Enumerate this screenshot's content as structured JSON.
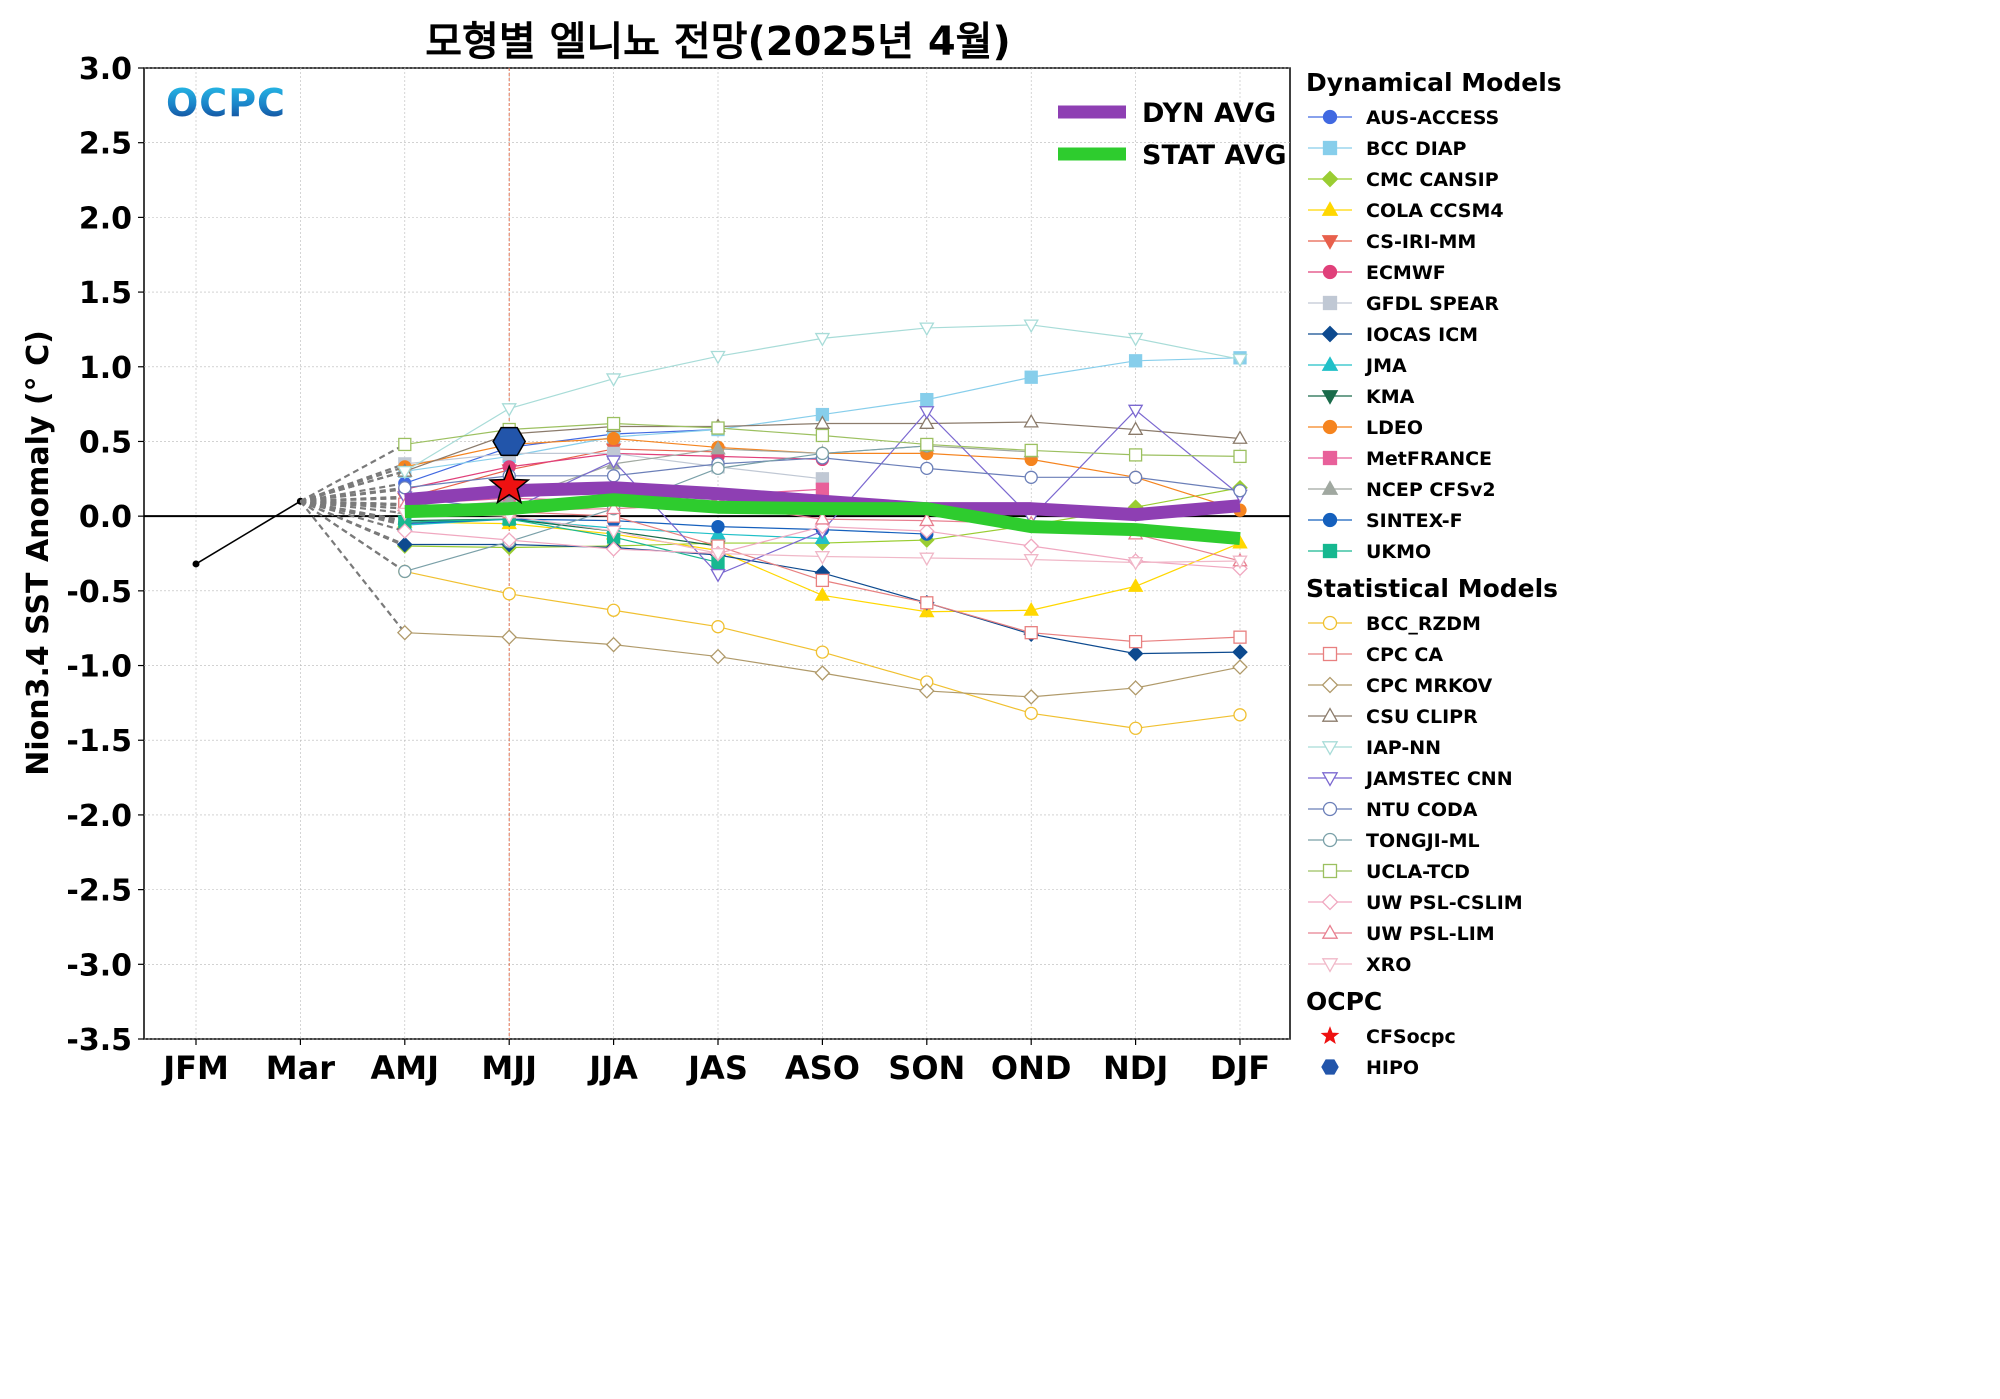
{
  "chart_data": {
    "type": "line",
    "title": "모형별 엘니뇨 전망(2025년 4월)",
    "logo_text": "OCPC",
    "ylabel": "Nion3.4 SST Anomaly (° C)",
    "ylim": [
      -3.5,
      3.0
    ],
    "yticks": [
      "3.0",
      "2.5",
      "2.0",
      "1.5",
      "1.0",
      "0.5",
      "0.0",
      "-0.5",
      "-1.0",
      "-1.5",
      "-2.0",
      "-2.5",
      "-3.0",
      "-3.5"
    ],
    "ytick_values": [
      3.0,
      2.5,
      2.0,
      1.5,
      1.0,
      0.5,
      0.0,
      -0.5,
      -1.0,
      -1.5,
      -2.0,
      -2.5,
      -3.0,
      -3.5
    ],
    "categories": [
      "JFM",
      "Mar",
      "AMJ",
      "MJJ",
      "JJA",
      "JAS",
      "ASO",
      "SON",
      "OND",
      "NDJ",
      "DJF"
    ],
    "grid": true,
    "observed": {
      "x": [
        "JFM",
        "Mar"
      ],
      "values": [
        -0.32,
        0.1
      ],
      "color": "#000000"
    },
    "current_month_marker": "MJJ",
    "avg_legend_placement": "top-right",
    "avg_series": [
      {
        "name": "DYN AVG",
        "color": "#8e3fb3",
        "values": [
          null,
          null,
          0.11,
          0.17,
          0.19,
          0.15,
          0.1,
          0.05,
          0.05,
          0.01,
          0.07
        ]
      },
      {
        "name": "STAT AVG",
        "color": "#2ecc2e",
        "values": [
          null,
          null,
          0.03,
          0.05,
          0.11,
          0.06,
          0.05,
          0.05,
          -0.07,
          -0.09,
          -0.15
        ]
      }
    ],
    "legend_groups": [
      {
        "title": "Dynamical Models",
        "series": [
          {
            "name": "AUS-ACCESS",
            "color": "#4169e1",
            "marker": "circle",
            "fill": true,
            "values": [
              null,
              null,
              0.22,
              0.46,
              0.55,
              0.58,
              null,
              null,
              null,
              null,
              null
            ]
          },
          {
            "name": "BCC DIAP",
            "color": "#87ceeb",
            "marker": "square",
            "fill": true,
            "values": [
              null,
              null,
              0.3,
              0.4,
              0.53,
              0.58,
              0.68,
              0.78,
              0.93,
              1.04,
              1.06
            ]
          },
          {
            "name": "CMC CANSIP",
            "color": "#9acd32",
            "marker": "diamond",
            "fill": true,
            "values": [
              null,
              null,
              -0.2,
              -0.21,
              -0.2,
              -0.18,
              -0.18,
              -0.16,
              -0.06,
              0.06,
              0.19
            ]
          },
          {
            "name": "COLA CCSM4",
            "color": "#ffd700",
            "marker": "triangle-up",
            "fill": true,
            "values": [
              null,
              null,
              -0.04,
              -0.05,
              -0.12,
              -0.23,
              -0.53,
              -0.64,
              -0.63,
              -0.47,
              -0.18
            ]
          },
          {
            "name": "CS-IRI-MM",
            "color": "#e8604c",
            "marker": "triangle-down",
            "fill": true,
            "values": [
              null,
              null,
              0.12,
              0.31,
              0.45,
              0.43,
              null,
              null,
              null,
              null,
              null
            ]
          },
          {
            "name": "ECMWF",
            "color": "#e0407a",
            "marker": "circle",
            "fill": true,
            "values": [
              null,
              null,
              0.18,
              0.33,
              0.42,
              0.4,
              0.38,
              null,
              null,
              null,
              null
            ]
          },
          {
            "name": "GFDL SPEAR",
            "color": "#c0c8d4",
            "marker": "square",
            "fill": true,
            "values": [
              null,
              null,
              0.35,
              0.42,
              0.42,
              0.33,
              0.25,
              null,
              null,
              null,
              null
            ]
          },
          {
            "name": "IOCAS ICM",
            "color": "#0d4a8f",
            "marker": "diamond",
            "fill": true,
            "values": [
              null,
              null,
              -0.19,
              -0.19,
              -0.21,
              -0.26,
              -0.38,
              -0.58,
              -0.79,
              -0.92,
              -0.91
            ]
          },
          {
            "name": "JMA",
            "color": "#20c0c8",
            "marker": "triangle-up",
            "fill": true,
            "values": [
              null,
              null,
              -0.06,
              -0.02,
              -0.08,
              -0.12,
              -0.15,
              null,
              null,
              null,
              null
            ]
          },
          {
            "name": "KMA",
            "color": "#1a6b4a",
            "marker": "triangle-down",
            "fill": true,
            "values": [
              null,
              null,
              -0.03,
              -0.02,
              -0.1,
              -0.2,
              null,
              null,
              null,
              null,
              null
            ]
          },
          {
            "name": "LDEO",
            "color": "#f5841f",
            "marker": "circle",
            "fill": true,
            "values": [
              null,
              null,
              0.33,
              0.48,
              0.52,
              0.46,
              0.42,
              0.42,
              0.38,
              0.26,
              0.04
            ]
          },
          {
            "name": "MetFRANCE",
            "color": "#e8609a",
            "marker": "square",
            "fill": true,
            "values": [
              null,
              null,
              0.08,
              0.12,
              0.1,
              0.14,
              0.18,
              null,
              null,
              null,
              null
            ]
          },
          {
            "name": "NCEP CFSv2",
            "color": "#a0a8a0",
            "marker": "triangle-up",
            "fill": true,
            "values": [
              null,
              null,
              0.05,
              0.1,
              0.35,
              0.45,
              0.42,
              0.47,
              0.43,
              null,
              null
            ]
          },
          {
            "name": "SINTEX-F",
            "color": "#1560bd",
            "marker": "circle",
            "fill": true,
            "values": [
              null,
              null,
              -0.05,
              -0.02,
              -0.03,
              -0.07,
              -0.09,
              -0.12,
              null,
              null,
              null
            ]
          },
          {
            "name": "UKMO",
            "color": "#17b890",
            "marker": "square",
            "fill": true,
            "values": [
              null,
              null,
              -0.04,
              -0.02,
              -0.14,
              -0.31,
              null,
              null,
              null,
              null,
              null
            ]
          }
        ]
      },
      {
        "title": "Statistical Models",
        "series": [
          {
            "name": "BCC_RZDM",
            "color": "#f0c030",
            "marker": "circle",
            "fill": false,
            "values": [
              null,
              null,
              -0.37,
              -0.52,
              -0.63,
              -0.74,
              -0.91,
              -1.11,
              -1.32,
              -1.42,
              -1.33
            ]
          },
          {
            "name": "CPC CA",
            "color": "#e88080",
            "marker": "square",
            "fill": false,
            "values": [
              null,
              null,
              0.08,
              0.03,
              0.0,
              -0.2,
              -0.43,
              -0.58,
              -0.78,
              -0.84,
              -0.81
            ]
          },
          {
            "name": "CPC MRKOV",
            "color": "#b09a6a",
            "marker": "diamond",
            "fill": false,
            "values": [
              null,
              null,
              -0.78,
              -0.81,
              -0.86,
              -0.94,
              -1.05,
              -1.17,
              -1.21,
              -1.15,
              -1.01
            ]
          },
          {
            "name": "CSU CLIPR",
            "color": "#8b7b6b",
            "marker": "triangle-up",
            "fill": false,
            "values": [
              null,
              null,
              0.3,
              0.55,
              0.6,
              0.6,
              0.62,
              0.62,
              0.63,
              0.58,
              0.52
            ]
          },
          {
            "name": "IAP-NN",
            "color": "#a8dcd8",
            "marker": "triangle-down",
            "fill": false,
            "values": [
              null,
              null,
              0.3,
              0.72,
              0.92,
              1.07,
              1.19,
              1.26,
              1.28,
              1.19,
              1.05
            ]
          },
          {
            "name": "JAMSTEC CNN",
            "color": "#7b68d0",
            "marker": "triangle-down",
            "fill": false,
            "values": [
              null,
              null,
              0.13,
              0.04,
              0.37,
              -0.39,
              -0.1,
              0.7,
              -0.01,
              0.71,
              0.14
            ]
          },
          {
            "name": "NTU CODA",
            "color": "#6b7fb8",
            "marker": "circle",
            "fill": false,
            "values": [
              null,
              null,
              0.19,
              0.27,
              0.27,
              0.35,
              0.39,
              0.32,
              0.26,
              0.26,
              0.17
            ]
          },
          {
            "name": "TONGJI-ML",
            "color": "#7aa0a8",
            "marker": "circle",
            "fill": false,
            "values": [
              null,
              null,
              -0.37,
              -0.17,
              0.05,
              0.32,
              0.42,
              0.47,
              null,
              null,
              null
            ]
          },
          {
            "name": "UCLA-TCD",
            "color": "#9cc060",
            "marker": "square",
            "fill": false,
            "values": [
              null,
              null,
              0.48,
              0.58,
              0.62,
              0.59,
              0.54,
              0.48,
              0.44,
              0.41,
              0.4
            ]
          },
          {
            "name": "UW PSL-CSLIM",
            "color": "#f0a8c0",
            "marker": "diamond",
            "fill": false,
            "values": [
              null,
              null,
              -0.1,
              -0.16,
              -0.22,
              -0.25,
              -0.07,
              -0.1,
              -0.2,
              -0.3,
              -0.35
            ]
          },
          {
            "name": "UW PSL-LIM",
            "color": "#e88090",
            "marker": "triangle-up",
            "fill": false,
            "values": [
              null,
              null,
              0.07,
              0.04,
              0.05,
              0.08,
              -0.02,
              -0.03,
              -0.05,
              -0.12,
              -0.3
            ]
          },
          {
            "name": "XRO",
            "color": "#f0b8c8",
            "marker": "triangle-down",
            "fill": false,
            "values": [
              null,
              null,
              0.02,
              0.0,
              -0.1,
              -0.25,
              -0.27,
              -0.28,
              -0.29,
              -0.31,
              -0.3
            ]
          }
        ]
      },
      {
        "title": "OCPC",
        "series": [
          {
            "name": "CFSocpc",
            "color": "#ee1111",
            "marker": "star",
            "fill": true,
            "values": [
              null,
              null,
              null,
              0.2,
              null,
              null,
              null,
              null,
              null,
              null,
              null
            ]
          },
          {
            "name": "HIPO",
            "color": "#2255aa",
            "marker": "hexagon",
            "fill": true,
            "values": [
              null,
              null,
              null,
              0.5,
              null,
              null,
              null,
              null,
              null,
              null,
              null
            ]
          }
        ]
      }
    ]
  }
}
